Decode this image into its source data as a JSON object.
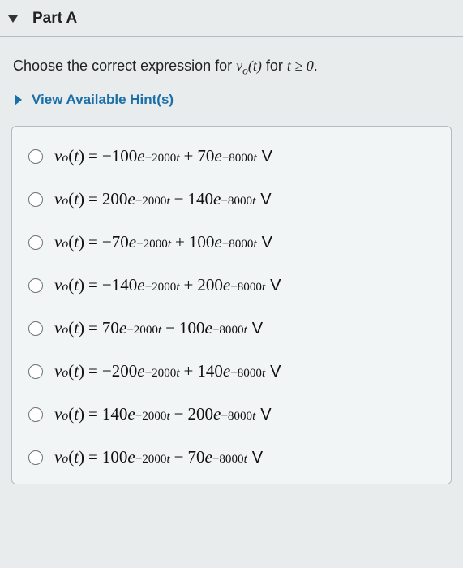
{
  "header": {
    "part_label": "Part A"
  },
  "question": {
    "prefix": "Choose the correct expression for ",
    "var_html": "v<sub>o</sub>(t)",
    "mid": " for ",
    "cond_html": "t ≥ 0",
    "suffix": "."
  },
  "hints": {
    "label": "View Available Hint(s)"
  },
  "options": [
    {
      "a": -100,
      "k1": -2000,
      "op": "+",
      "b": 70,
      "k2": -8000
    },
    {
      "a": 200,
      "k1": -2000,
      "op": "−",
      "b": 140,
      "k2": -8000
    },
    {
      "a": -70,
      "k1": -2000,
      "op": "+",
      "b": 100,
      "k2": -8000
    },
    {
      "a": -140,
      "k1": -2000,
      "op": "+",
      "b": 200,
      "k2": -8000
    },
    {
      "a": 70,
      "k1": -2000,
      "op": "−",
      "b": 100,
      "k2": -8000
    },
    {
      "a": -200,
      "k1": -2000,
      "op": "+",
      "b": 140,
      "k2": -8000
    },
    {
      "a": 140,
      "k1": -2000,
      "op": "−",
      "b": 200,
      "k2": -8000
    },
    {
      "a": 100,
      "k1": -2000,
      "op": "−",
      "b": 70,
      "k2": -8000
    }
  ],
  "unit": "V",
  "colors": {
    "page_bg": "#e8eced",
    "box_bg": "#f2f5f6",
    "border": "#b5bbc0",
    "link": "#1b6fa8",
    "text": "#222"
  },
  "typography": {
    "body_font": "Arial",
    "math_font": "Times New Roman",
    "header_size_pt": 19,
    "question_size_pt": 18,
    "expr_size_pt": 21
  }
}
